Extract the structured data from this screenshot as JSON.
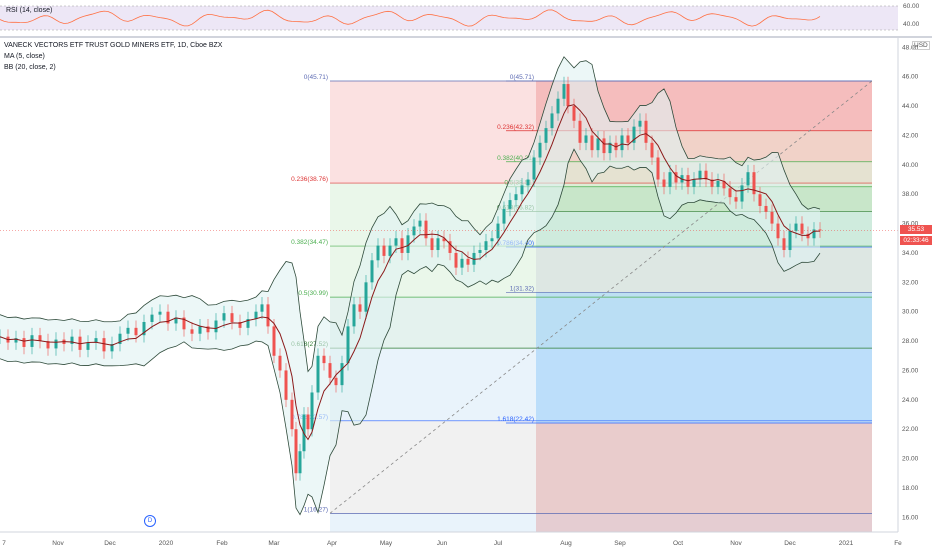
{
  "symbol": {
    "title": "VANECK VECTORS ETF TRUST GOLD MINERS ETF, 1D, Cboe BZX",
    "currency": "USD",
    "price_badge": "35.53",
    "timer_badge": "02:33:46"
  },
  "indicators": {
    "ma": "MA (5, close)",
    "bb": "BB (20, close, 2)",
    "rsi": "RSI (14, close)",
    "rsi_ticks": [
      "60.00",
      "40.00"
    ]
  },
  "event_marker": "D",
  "colors": {
    "rsi_line": "#ff7043",
    "rsi_band": "#ede7f6",
    "ma": "#8b1a1a",
    "bb": "#2e4a3a",
    "bb_fill": "#e0f2f1",
    "up": "#26a69a",
    "down": "#ef5350"
  },
  "chart_data": {
    "type": "candlestick",
    "ylim": [
      15,
      48.5
    ],
    "y_ticks": [
      "48.00",
      "46.00",
      "44.00",
      "42.00",
      "40.00",
      "38.00",
      "36.00",
      "34.00",
      "32.00",
      "30.00",
      "28.00",
      "26.00",
      "24.00",
      "22.00",
      "20.00",
      "18.00",
      "16.00"
    ],
    "x_ticks": [
      "7",
      "Nov",
      "Dec",
      "2020",
      "Feb",
      "Mar",
      "Apr",
      "May",
      "Jun",
      "Jul",
      "Aug",
      "Sep",
      "Oct",
      "Nov",
      "Dec",
      "2021",
      "Fe"
    ],
    "current_price": 35.53,
    "fib_left": {
      "levels": [
        {
          "label": "0(45.71)",
          "value": 45.71
        },
        {
          "label": "0.236(38.76)",
          "value": 38.76
        },
        {
          "label": "0.382(34.47)",
          "value": 34.47
        },
        {
          "label": "0.5(30.99)",
          "value": 30.99
        },
        {
          "label": "0.618(27.52)",
          "value": 27.52
        },
        {
          "label": "0.786(22.57)",
          "value": 22.57
        },
        {
          "label": "1(16.27)",
          "value": 16.27
        }
      ]
    },
    "fib_right": {
      "levels": [
        {
          "label": "0(45.71)",
          "value": 45.71
        },
        {
          "label": "0.236(42.32)",
          "value": 42.32
        },
        {
          "label": "0.382(40.21)",
          "value": 40.21
        },
        {
          "label": "0.5(38.51)",
          "value": 38.51
        },
        {
          "label": "0.618(36.82)",
          "value": 36.82
        },
        {
          "label": "0.786(34.40)",
          "value": 34.4
        },
        {
          "label": "1(31.32)",
          "value": 31.32
        },
        {
          "label": "1.618(22.42)",
          "value": 22.42
        }
      ]
    },
    "price_path": [
      [
        0,
        28.3
      ],
      [
        8,
        27.9
      ],
      [
        16,
        28.2
      ],
      [
        24,
        27.6
      ],
      [
        32,
        28.4
      ],
      [
        40,
        28.0
      ],
      [
        48,
        27.5
      ],
      [
        56,
        28.1
      ],
      [
        64,
        27.8
      ],
      [
        72,
        28.3
      ],
      [
        80,
        27.4
      ],
      [
        88,
        27.9
      ],
      [
        96,
        28.2
      ],
      [
        104,
        27.3
      ],
      [
        112,
        27.8
      ],
      [
        120,
        28.5
      ],
      [
        128,
        28.9
      ],
      [
        136,
        28.4
      ],
      [
        144,
        29.3
      ],
      [
        152,
        29.8
      ],
      [
        160,
        30.0
      ],
      [
        168,
        29.2
      ],
      [
        176,
        29.6
      ],
      [
        184,
        28.8
      ],
      [
        192,
        28.5
      ],
      [
        200,
        29.0
      ],
      [
        208,
        28.6
      ],
      [
        216,
        29.4
      ],
      [
        224,
        29.9
      ],
      [
        232,
        29.3
      ],
      [
        240,
        28.9
      ],
      [
        248,
        29.5
      ],
      [
        256,
        30.0
      ],
      [
        262,
        30.5
      ],
      [
        268,
        29.0
      ],
      [
        274,
        27.0
      ],
      [
        280,
        26.0
      ],
      [
        286,
        24.0
      ],
      [
        292,
        22.0
      ],
      [
        296,
        19.0
      ],
      [
        300,
        20.5
      ],
      [
        304,
        23.0
      ],
      [
        308,
        22.0
      ],
      [
        312,
        24.5
      ],
      [
        318,
        27.0
      ],
      [
        324,
        26.5
      ],
      [
        330,
        25.5
      ],
      [
        336,
        25.0
      ],
      [
        342,
        26.5
      ],
      [
        348,
        29.0
      ],
      [
        354,
        30.5
      ],
      [
        360,
        30.0
      ],
      [
        366,
        32.0
      ],
      [
        372,
        33.5
      ],
      [
        378,
        34.5
      ],
      [
        384,
        33.8
      ],
      [
        390,
        34.5
      ],
      [
        396,
        35.0
      ],
      [
        402,
        34.0
      ],
      [
        408,
        35.2
      ],
      [
        414,
        35.8
      ],
      [
        420,
        36.2
      ],
      [
        426,
        35.0
      ],
      [
        432,
        34.2
      ],
      [
        438,
        35.0
      ],
      [
        444,
        34.8
      ],
      [
        450,
        34.0
      ],
      [
        456,
        33.0
      ],
      [
        462,
        33.6
      ],
      [
        468,
        33.2
      ],
      [
        474,
        34.0
      ],
      [
        480,
        34.2
      ],
      [
        486,
        34.8
      ],
      [
        492,
        35.0
      ],
      [
        498,
        36.0
      ],
      [
        504,
        37.0
      ],
      [
        510,
        37.6
      ],
      [
        516,
        38.0
      ],
      [
        522,
        38.6
      ],
      [
        528,
        39.0
      ],
      [
        534,
        40.5
      ],
      [
        540,
        41.5
      ],
      [
        546,
        42.5
      ],
      [
        552,
        43.5
      ],
      [
        558,
        44.5
      ],
      [
        564,
        45.5
      ],
      [
        568,
        44.0
      ],
      [
        574,
        43.0
      ],
      [
        580,
        41.5
      ],
      [
        586,
        42.0
      ],
      [
        592,
        41.0
      ],
      [
        598,
        41.8
      ],
      [
        604,
        40.8
      ],
      [
        610,
        41.5
      ],
      [
        616,
        41.0
      ],
      [
        622,
        42.0
      ],
      [
        628,
        41.5
      ],
      [
        634,
        42.6
      ],
      [
        640,
        43.0
      ],
      [
        646,
        41.5
      ],
      [
        652,
        40.5
      ],
      [
        658,
        39.0
      ],
      [
        664,
        38.5
      ],
      [
        670,
        39.5
      ],
      [
        676,
        38.8
      ],
      [
        682,
        39.3
      ],
      [
        688,
        38.5
      ],
      [
        694,
        39.0
      ],
      [
        700,
        39.6
      ],
      [
        706,
        39.0
      ],
      [
        712,
        38.5
      ],
      [
        718,
        38.9
      ],
      [
        724,
        38.4
      ],
      [
        730,
        37.8
      ],
      [
        736,
        37.5
      ],
      [
        742,
        38.6
      ],
      [
        748,
        39.5
      ],
      [
        754,
        38.0
      ],
      [
        760,
        37.2
      ],
      [
        766,
        36.8
      ],
      [
        772,
        36.0
      ],
      [
        778,
        35.0
      ],
      [
        784,
        34.2
      ],
      [
        790,
        35.5
      ],
      [
        796,
        36.0
      ],
      [
        802,
        35.3
      ],
      [
        808,
        35.0
      ],
      [
        814,
        35.6
      ],
      [
        820,
        35.53
      ]
    ]
  }
}
